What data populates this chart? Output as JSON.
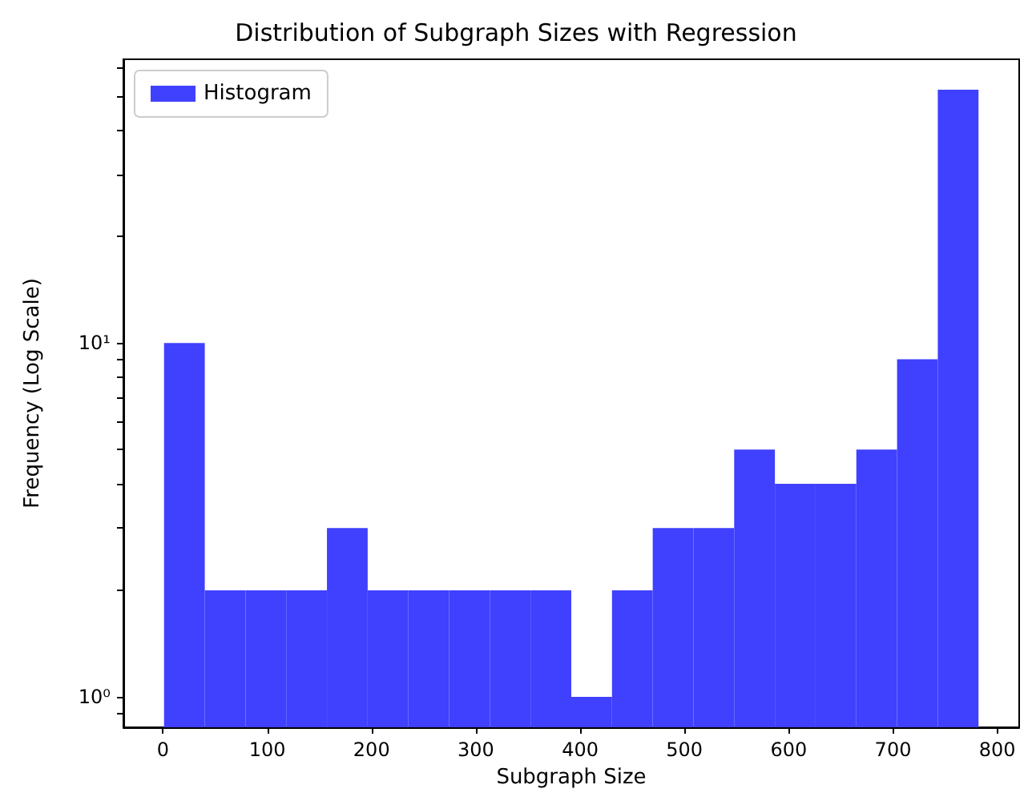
{
  "chart_data": {
    "type": "histogram",
    "title": "Distribution of Subgraph Sizes with Regression",
    "xlabel": "Subgraph Size",
    "ylabel": "Frequency (Log Scale)",
    "bins": [
      1,
      40.05,
      79.1,
      118.15,
      157.2,
      196.25,
      235.3,
      274.35,
      313.4,
      352.45,
      391.5,
      430.55,
      469.6,
      508.65,
      547.7,
      586.75,
      625.8,
      664.85,
      703.9,
      742.95,
      782
    ],
    "series": [
      {
        "name": "Histogram",
        "color": "#4040ff",
        "values": [
          10,
          2,
          2,
          2,
          3,
          2,
          2,
          2,
          2,
          2,
          1,
          2,
          3,
          3,
          5,
          4,
          4,
          5,
          9,
          52
        ]
      }
    ],
    "log": "y",
    "xlim": [
      -38,
      821
    ],
    "xticks": [
      0,
      100,
      200,
      300,
      400,
      500,
      600,
      700,
      800
    ],
    "ylim": [
      0.82,
      63.4
    ],
    "yticks": [
      {
        "value": 0.9,
        "label": null
      },
      {
        "value": 1,
        "label": "10⁰"
      },
      {
        "value": 2,
        "label": null
      },
      {
        "value": 3,
        "label": null
      },
      {
        "value": 4,
        "label": null
      },
      {
        "value": 5,
        "label": null
      },
      {
        "value": 6,
        "label": null
      },
      {
        "value": 7,
        "label": null
      },
      {
        "value": 8,
        "label": null
      },
      {
        "value": 9,
        "label": null
      },
      {
        "value": 10,
        "label": "10¹"
      },
      {
        "value": 20,
        "label": null
      },
      {
        "value": 30,
        "label": null
      },
      {
        "value": 40,
        "label": null
      },
      {
        "value": 50,
        "label": null
      },
      {
        "value": 60,
        "label": null
      }
    ],
    "grid": false,
    "legend": "top left"
  }
}
